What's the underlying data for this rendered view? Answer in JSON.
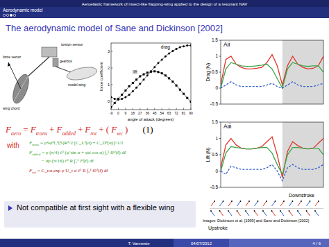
{
  "header": {
    "section": "Aerodynamic model",
    "title": "Aeroelastic framework of insect-like flapping-wing applied to the design of a resonant NAV"
  },
  "frame_title": "The aerodynamic model of Sane and Dickinson [2002]",
  "apparatus": {
    "labels": [
      "force vector",
      "torsion sensor",
      "wing chord",
      "gearbox",
      "model wing"
    ]
  },
  "chart_data": [
    {
      "type": "line",
      "x_label": "angle of attack (degrees)",
      "y_label": "force coefficient",
      "x": [
        -9,
        -4.5,
        0,
        4.5,
        9,
        13.5,
        18,
        22.5,
        27,
        31.5,
        36,
        40.5,
        45,
        49.5,
        54,
        58.5,
        63,
        67.5,
        72,
        76.5,
        81,
        85.5,
        90
      ],
      "xlim": [
        -9,
        90
      ],
      "xticks": [
        -9,
        0,
        9,
        18,
        27,
        36,
        45,
        54,
        63,
        72,
        81,
        90
      ],
      "ylim": [
        -0.5,
        3.5
      ],
      "yticks": [
        0,
        1,
        2,
        3
      ],
      "grid": false,
      "series": [
        {
          "name": "drag",
          "color": "#000000",
          "marker": "circle",
          "values": [
            0.25,
            0.15,
            0.1,
            0.15,
            0.25,
            0.4,
            0.6,
            0.82,
            1.05,
            1.3,
            1.55,
            1.8,
            2.05,
            2.3,
            2.5,
            2.7,
            2.88,
            3.02,
            3.15,
            3.25,
            3.3,
            3.35,
            3.35
          ]
        },
        {
          "name": "lift",
          "color": "#000000",
          "marker": "square",
          "values": [
            -0.35,
            -0.1,
            0.15,
            0.4,
            0.65,
            0.9,
            1.1,
            1.3,
            1.5,
            1.62,
            1.72,
            1.78,
            1.8,
            1.76,
            1.68,
            1.55,
            1.38,
            1.18,
            0.95,
            0.7,
            0.45,
            0.2,
            -0.02
          ]
        }
      ]
    },
    {
      "type": "line",
      "title": "Aii",
      "y_label": "Drag (N)",
      "x": [
        0,
        0.05,
        0.1,
        0.15,
        0.2,
        0.25,
        0.3,
        0.35,
        0.4,
        0.45,
        0.5,
        0.55,
        0.6,
        0.65,
        0.7,
        0.75,
        0.8,
        0.85,
        0.9,
        0.95,
        1
      ],
      "xlim": [
        0,
        1
      ],
      "ylim": [
        -0.5,
        1.5
      ],
      "yticks": [
        -0.5,
        0,
        0.5,
        1,
        1.5
      ],
      "tick_labels": "y",
      "shaded_range": [
        0.6,
        1
      ],
      "series": [
        {
          "color": "#e0352b",
          "line_style": "solid",
          "values": [
            0.1,
            0.9,
            1.0,
            0.75,
            0.65,
            0.6,
            0.6,
            0.62,
            0.65,
            0.8,
            1.05,
            0.7,
            0.1,
            0.7,
            1.0,
            0.75,
            0.65,
            0.6,
            0.62,
            0.7,
            1.0
          ]
        },
        {
          "color": "#3aa64a",
          "line_style": "solid",
          "values": [
            0,
            0.6,
            0.8,
            0.75,
            0.7,
            0.68,
            0.68,
            0.7,
            0.72,
            0.75,
            0.6,
            0.3,
            0,
            0.6,
            0.8,
            0.75,
            0.7,
            0.68,
            0.7,
            0.7,
            0.5
          ]
        },
        {
          "color": "#2f5fd0",
          "line_style": "dashed",
          "values": [
            0,
            0.1,
            0.2,
            0.1,
            0.05,
            0.05,
            0.05,
            0.05,
            0.05,
            0.1,
            0.15,
            0.05,
            0,
            0.1,
            0.2,
            0.1,
            0.05,
            0.05,
            0.05,
            0.1,
            0.15
          ]
        }
      ]
    },
    {
      "type": "line",
      "title": "Aiii",
      "y_label": "Lift (N)",
      "x": [
        0,
        0.05,
        0.1,
        0.15,
        0.2,
        0.25,
        0.3,
        0.35,
        0.4,
        0.45,
        0.5,
        0.55,
        0.6,
        0.65,
        0.7,
        0.75,
        0.8,
        0.85,
        0.9,
        0.95,
        1
      ],
      "xlim": [
        0,
        1
      ],
      "ylim": [
        -0.5,
        1.5
      ],
      "yticks": [
        -0.5,
        0,
        0.5,
        1,
        1.5
      ],
      "tick_labels": "y",
      "shaded_range": [
        0.6,
        1
      ],
      "series": [
        {
          "color": "#e0352b",
          "line_style": "solid",
          "values": [
            0.1,
            0.8,
            1.0,
            0.8,
            0.7,
            0.68,
            0.68,
            0.7,
            0.75,
            0.9,
            1.05,
            0.5,
            -0.2,
            0.6,
            0.9,
            0.78,
            0.7,
            0.68,
            0.7,
            0.85,
            1.0
          ]
        },
        {
          "color": "#3aa64a",
          "line_style": "solid",
          "values": [
            0,
            0.55,
            0.75,
            0.72,
            0.7,
            0.68,
            0.68,
            0.7,
            0.72,
            0.72,
            0.55,
            0.2,
            -0.1,
            0.5,
            0.72,
            0.72,
            0.7,
            0.68,
            0.7,
            0.7,
            0.5
          ]
        },
        {
          "color": "#2f5fd0",
          "line_style": "dashed",
          "values": [
            0,
            -0.1,
            0.15,
            0.1,
            0.05,
            0.05,
            0.05,
            0.05,
            0.05,
            0.1,
            0.2,
            0,
            -0.3,
            0.1,
            0.2,
            0.1,
            0.05,
            0.05,
            0.05,
            0.1,
            0.2
          ]
        }
      ]
    }
  ],
  "stroke_diagram": {
    "labels": [
      "Downstroke",
      "Upstroke"
    ]
  },
  "caption": "Images: Dickinson et al. [1999] and Sane and Dickinson [2002]",
  "equation": {
    "tokens": [
      {
        "text": "F",
        "sub": "aero"
      },
      {
        "text": "="
      },
      {
        "text": "F",
        "sub": "trans"
      },
      {
        "text": "+"
      },
      {
        "text": "F",
        "sub": "added"
      },
      {
        "text": "+"
      },
      {
        "text": "F",
        "sub": "rot"
      },
      {
        "text": "+ ("
      },
      {
        "text": "F",
        "sub": "wc"
      },
      {
        "text": ")"
      }
    ],
    "number": "(1)",
    "with": "with"
  },
  "formulas": [
    {
      "symbol": "F",
      "sub": "trans",
      "lines": [
        "= ρSφ̇²r̂₂²(S)R²/2 [C_L²(α) + C_D²(α)]^1/2"
      ]
    },
    {
      "symbol": "F",
      "sub": "added",
      "lines": [
        "= ρ (π/4) c̄² (φ̈ sin α + φ̇α̇ cos α) ∫₀¹ r̂ĉ²(r̂) dr̂",
        "− α̈ρ (π/16) c̄³ R ∫₀¹ ĉ²(r̂) dr̂"
      ]
    },
    {
      "symbol": "F",
      "sub": "rot",
      "lines": [
        "= C_rot,exp ρ U_t α̇ c̄² R ∫₀¹ r̂ĉ²(r̂) dr̂"
      ]
    }
  ],
  "bullet": "Not compatible at first sight with a flexible wing",
  "footer": {
    "author": "T. Vanneste",
    "date": "04/07/2012",
    "page": "4 / 6"
  }
}
